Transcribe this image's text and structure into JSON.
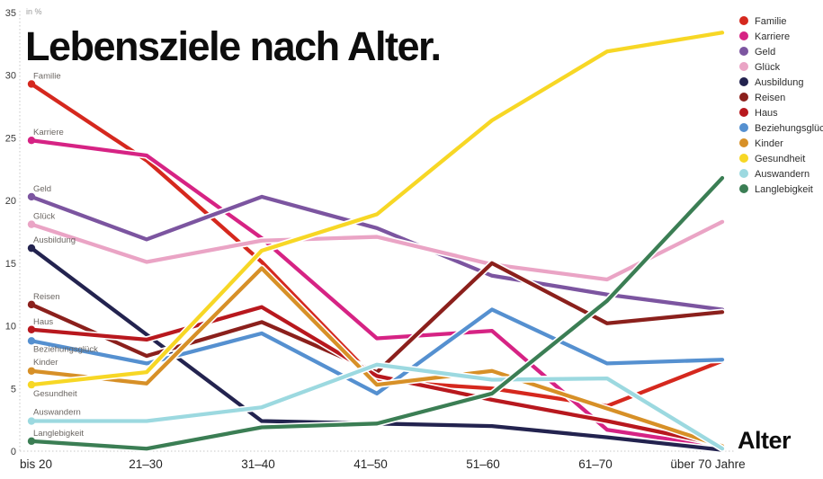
{
  "title": "Lebensziele nach Alter.",
  "axis": {
    "y_unit": "in %",
    "x_label": "Alter"
  },
  "chart_data": {
    "type": "line",
    "title": "Lebensziele nach Alter.",
    "xlabel": "Alter",
    "ylabel": "in %",
    "ylim": [
      0,
      35
    ],
    "yticks": [
      0,
      5,
      10,
      15,
      20,
      25,
      30,
      35
    ],
    "grid": false,
    "legend_position": "top-right",
    "categories": [
      "bis 20",
      "21–30",
      "31–40",
      "41–50",
      "51–60",
      "61–70",
      "über 70 Jahre"
    ],
    "series": [
      {
        "name": "Familie",
        "color": "#d5281e",
        "values": [
          29.3,
          23.2,
          15.1,
          5.6,
          5.0,
          3.6,
          7.2
        ]
      },
      {
        "name": "Karriere",
        "color": "#d62384",
        "values": [
          24.8,
          23.6,
          17.0,
          9.0,
          9.6,
          1.7,
          0.3
        ]
      },
      {
        "name": "Geld",
        "color": "#7c55a0",
        "values": [
          20.3,
          16.9,
          20.3,
          17.8,
          14.0,
          12.5,
          11.3
        ]
      },
      {
        "name": "Glück",
        "color": "#eaa4c5",
        "values": [
          18.1,
          15.1,
          16.8,
          17.1,
          14.9,
          13.7,
          18.3
        ]
      },
      {
        "name": "Ausbildung",
        "color": "#23234f",
        "values": [
          16.2,
          9.3,
          2.4,
          2.2,
          2.0,
          1.1,
          0.1
        ]
      },
      {
        "name": "Reisen",
        "color": "#8b201c",
        "values": [
          11.7,
          7.6,
          10.3,
          6.3,
          15.0,
          10.2,
          11.1
        ]
      },
      {
        "name": "Haus",
        "color": "#b8181e",
        "values": [
          9.7,
          8.9,
          11.5,
          6.0,
          4.1,
          2.4,
          0.5
        ]
      },
      {
        "name": "Beziehungsglück",
        "color": "#5590d0",
        "values": [
          8.8,
          7.0,
          9.4,
          4.6,
          11.3,
          7.0,
          7.3
        ]
      },
      {
        "name": "Kinder",
        "color": "#d79027",
        "values": [
          6.4,
          5.4,
          14.6,
          5.3,
          6.4,
          3.4,
          0.4
        ]
      },
      {
        "name": "Gesundheit",
        "color": "#f7d725",
        "values": [
          5.3,
          6.3,
          16.0,
          18.9,
          26.4,
          31.9,
          33.4
        ]
      },
      {
        "name": "Auswandern",
        "color": "#9cd9e0",
        "values": [
          2.4,
          2.4,
          3.5,
          6.9,
          5.7,
          5.8,
          0.2
        ]
      },
      {
        "name": "Langlebigkeit",
        "color": "#3b7e54",
        "values": [
          0.8,
          0.2,
          1.9,
          2.2,
          4.6,
          12.0,
          21.8
        ]
      }
    ]
  }
}
